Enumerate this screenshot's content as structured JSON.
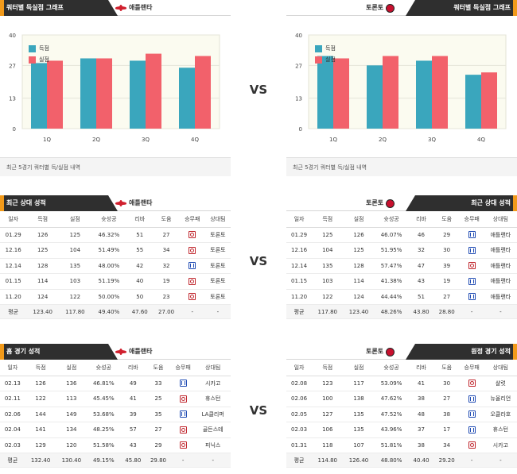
{
  "sections": {
    "quarter": {
      "left_title": "쿼터별 득실점 그래프",
      "right_title": "쿼터별 득실점 그래프",
      "left_team": "애틀랜타",
      "right_team": "토론토",
      "footnote": "최근 5경기 쿼터별 득/실점 내역"
    },
    "recent": {
      "left_title": "최근 상대 성적",
      "right_title": "최근 상대 성적",
      "left_team": "애틀랜타",
      "right_team": "토론토"
    },
    "home_away": {
      "left_title": "홈 경기 성적",
      "right_title": "원정 경기 성적",
      "left_team": "애틀랜타",
      "right_team": "토론토"
    }
  },
  "vs_label": "VS",
  "legend": {
    "scored": "득점",
    "allowed": "실점"
  },
  "colors": {
    "scored": "#3aa6bd",
    "allowed": "#f2616b",
    "win": "#c0262d",
    "loss": "#1f4bb3",
    "accent": "#f29a1a"
  },
  "chart_data": [
    {
      "type": "bar",
      "categories": [
        "1Q",
        "2Q",
        "3Q",
        "4Q"
      ],
      "series": [
        {
          "name": "득점",
          "values": [
            28,
            30,
            29,
            26
          ]
        },
        {
          "name": "실점",
          "values": [
            29,
            30,
            32,
            31
          ]
        }
      ],
      "yticks": [
        0,
        13,
        27,
        40
      ],
      "ylim": [
        0,
        40
      ],
      "legend": "top-left"
    },
    {
      "type": "bar",
      "categories": [
        "1Q",
        "2Q",
        "3Q",
        "4Q"
      ],
      "series": [
        {
          "name": "득점",
          "values": [
            31,
            27,
            29,
            23
          ]
        },
        {
          "name": "실점",
          "values": [
            30,
            31,
            31,
            24
          ]
        }
      ],
      "yticks": [
        0,
        13,
        27,
        40
      ],
      "ylim": [
        0,
        40
      ],
      "legend": "top-left"
    }
  ],
  "table_headers": [
    "일자",
    "득점",
    "실점",
    "슛성공",
    "리바",
    "도움",
    "승무패",
    "상대팀"
  ],
  "recent_left": {
    "rows": [
      {
        "date": "01.29",
        "pts": "126",
        "opp": "125",
        "fg": "46.32%",
        "reb": "51",
        "ast": "27",
        "res": "w",
        "team": "토론토"
      },
      {
        "date": "12.16",
        "pts": "125",
        "opp": "104",
        "fg": "51.49%",
        "reb": "55",
        "ast": "34",
        "res": "w",
        "team": "토론토"
      },
      {
        "date": "12.14",
        "pts": "128",
        "opp": "135",
        "fg": "48.00%",
        "reb": "42",
        "ast": "32",
        "res": "l",
        "team": "토론토"
      },
      {
        "date": "01.15",
        "pts": "114",
        "opp": "103",
        "fg": "51.19%",
        "reb": "40",
        "ast": "19",
        "res": "w",
        "team": "토론토"
      },
      {
        "date": "11.20",
        "pts": "124",
        "opp": "122",
        "fg": "50.00%",
        "reb": "50",
        "ast": "23",
        "res": "w",
        "team": "토론토"
      }
    ],
    "avg": {
      "label": "평균",
      "pts": "123.40",
      "opp": "117.80",
      "fg": "49.40%",
      "reb": "47.60",
      "ast": "27.00",
      "res": "-",
      "team": "-"
    }
  },
  "recent_right": {
    "rows": [
      {
        "date": "01.29",
        "pts": "125",
        "opp": "126",
        "fg": "46.07%",
        "reb": "46",
        "ast": "29",
        "res": "l",
        "team": "애틀랜타"
      },
      {
        "date": "12.16",
        "pts": "104",
        "opp": "125",
        "fg": "51.95%",
        "reb": "32",
        "ast": "30",
        "res": "l",
        "team": "애틀랜타"
      },
      {
        "date": "12.14",
        "pts": "135",
        "opp": "128",
        "fg": "57.47%",
        "reb": "47",
        "ast": "39",
        "res": "w",
        "team": "애틀랜타"
      },
      {
        "date": "01.15",
        "pts": "103",
        "opp": "114",
        "fg": "41.38%",
        "reb": "43",
        "ast": "19",
        "res": "l",
        "team": "애틀랜타"
      },
      {
        "date": "11.20",
        "pts": "122",
        "opp": "124",
        "fg": "44.44%",
        "reb": "51",
        "ast": "27",
        "res": "l",
        "team": "애틀랜타"
      }
    ],
    "avg": {
      "label": "평균",
      "pts": "117.80",
      "opp": "123.40",
      "fg": "48.26%",
      "reb": "43.80",
      "ast": "28.80",
      "res": "-",
      "team": "-"
    }
  },
  "home_left": {
    "rows": [
      {
        "date": "02.13",
        "pts": "126",
        "opp": "136",
        "fg": "46.81%",
        "reb": "49",
        "ast": "33",
        "res": "l",
        "team": "시카고"
      },
      {
        "date": "02.11",
        "pts": "122",
        "opp": "113",
        "fg": "45.45%",
        "reb": "41",
        "ast": "25",
        "res": "w",
        "team": "휴스턴"
      },
      {
        "date": "02.06",
        "pts": "144",
        "opp": "149",
        "fg": "53.68%",
        "reb": "39",
        "ast": "35",
        "res": "l",
        "team": "LA클리퍼"
      },
      {
        "date": "02.04",
        "pts": "141",
        "opp": "134",
        "fg": "48.25%",
        "reb": "57",
        "ast": "27",
        "res": "w",
        "team": "골든스테"
      },
      {
        "date": "02.03",
        "pts": "129",
        "opp": "120",
        "fg": "51.58%",
        "reb": "43",
        "ast": "29",
        "res": "w",
        "team": "피닉스"
      }
    ],
    "avg": {
      "label": "평균",
      "pts": "132.40",
      "opp": "130.40",
      "fg": "49.15%",
      "reb": "45.80",
      "ast": "29.80",
      "res": "-",
      "team": "-"
    }
  },
  "away_right": {
    "rows": [
      {
        "date": "02.08",
        "pts": "123",
        "opp": "117",
        "fg": "53.09%",
        "reb": "41",
        "ast": "30",
        "res": "w",
        "team": "샬럿"
      },
      {
        "date": "02.06",
        "pts": "100",
        "opp": "138",
        "fg": "47.62%",
        "reb": "38",
        "ast": "27",
        "res": "l",
        "team": "뉴올리언"
      },
      {
        "date": "02.05",
        "pts": "127",
        "opp": "135",
        "fg": "47.52%",
        "reb": "48",
        "ast": "38",
        "res": "l",
        "team": "오클라호"
      },
      {
        "date": "02.03",
        "pts": "106",
        "opp": "135",
        "fg": "43.96%",
        "reb": "37",
        "ast": "17",
        "res": "l",
        "team": "휴스턴"
      },
      {
        "date": "01.31",
        "pts": "118",
        "opp": "107",
        "fg": "51.81%",
        "reb": "38",
        "ast": "34",
        "res": "w",
        "team": "시카고"
      }
    ],
    "avg": {
      "label": "평균",
      "pts": "114.80",
      "opp": "126.40",
      "fg": "48.80%",
      "reb": "40.40",
      "ast": "29.20",
      "res": "-",
      "team": "-"
    }
  }
}
